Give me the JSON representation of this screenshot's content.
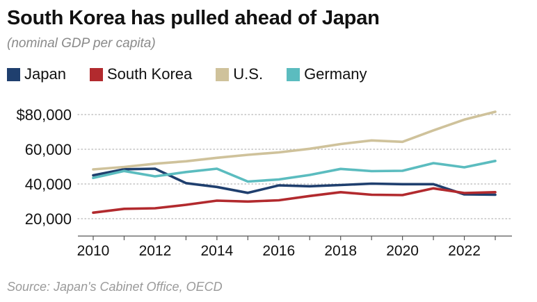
{
  "header": {
    "title": "South Korea has pulled ahead of Japan",
    "subtitle": "(nominal GDP per capita)"
  },
  "footer": {
    "source": "Source: Japan's Cabinet Office, OECD"
  },
  "chart_data": {
    "type": "line",
    "title": "South Korea has pulled ahead of Japan",
    "subtitle": "(nominal GDP per capita)",
    "xlabel": "",
    "ylabel": "",
    "x": [
      2010,
      2011,
      2012,
      2013,
      2014,
      2015,
      2016,
      2017,
      2018,
      2019,
      2020,
      2021,
      2022,
      2023
    ],
    "xlim": [
      2010,
      2023
    ],
    "ylim": [
      10000,
      85000
    ],
    "x_ticks": [
      2010,
      2012,
      2014,
      2016,
      2018,
      2020,
      2022
    ],
    "x_tick_labels": [
      "2010",
      "2012",
      "2014",
      "2016",
      "2018",
      "2020",
      "2022"
    ],
    "y_ticks": [
      20000,
      40000,
      60000,
      80000
    ],
    "y_tick_labels": [
      "20,000",
      "40,000",
      "60,000",
      "$80,000"
    ],
    "grid": "horizontal dotted",
    "legend_position": "top-left",
    "series": [
      {
        "name": "Japan",
        "color": "#1f3f6e",
        "values": [
          45000,
          48500,
          48800,
          40500,
          38300,
          34900,
          39200,
          38700,
          39400,
          40200,
          39900,
          39900,
          34000,
          33800
        ]
      },
      {
        "name": "South Korea",
        "color": "#b22a2e",
        "values": [
          23500,
          25700,
          26000,
          28000,
          30400,
          29900,
          30600,
          33100,
          35300,
          33800,
          33600,
          37500,
          34800,
          35300
        ]
      },
      {
        "name": "U.S.",
        "color": "#cfc29b",
        "values": [
          48400,
          49800,
          51700,
          53100,
          55100,
          56800,
          58200,
          60300,
          63000,
          65100,
          64300,
          70900,
          77100,
          81600
        ]
      },
      {
        "name": "Germany",
        "color": "#5bbcbf",
        "values": [
          43500,
          47500,
          44400,
          46900,
          48800,
          41400,
          42600,
          45200,
          48700,
          47400,
          47600,
          52000,
          49600,
          53300
        ]
      }
    ]
  }
}
